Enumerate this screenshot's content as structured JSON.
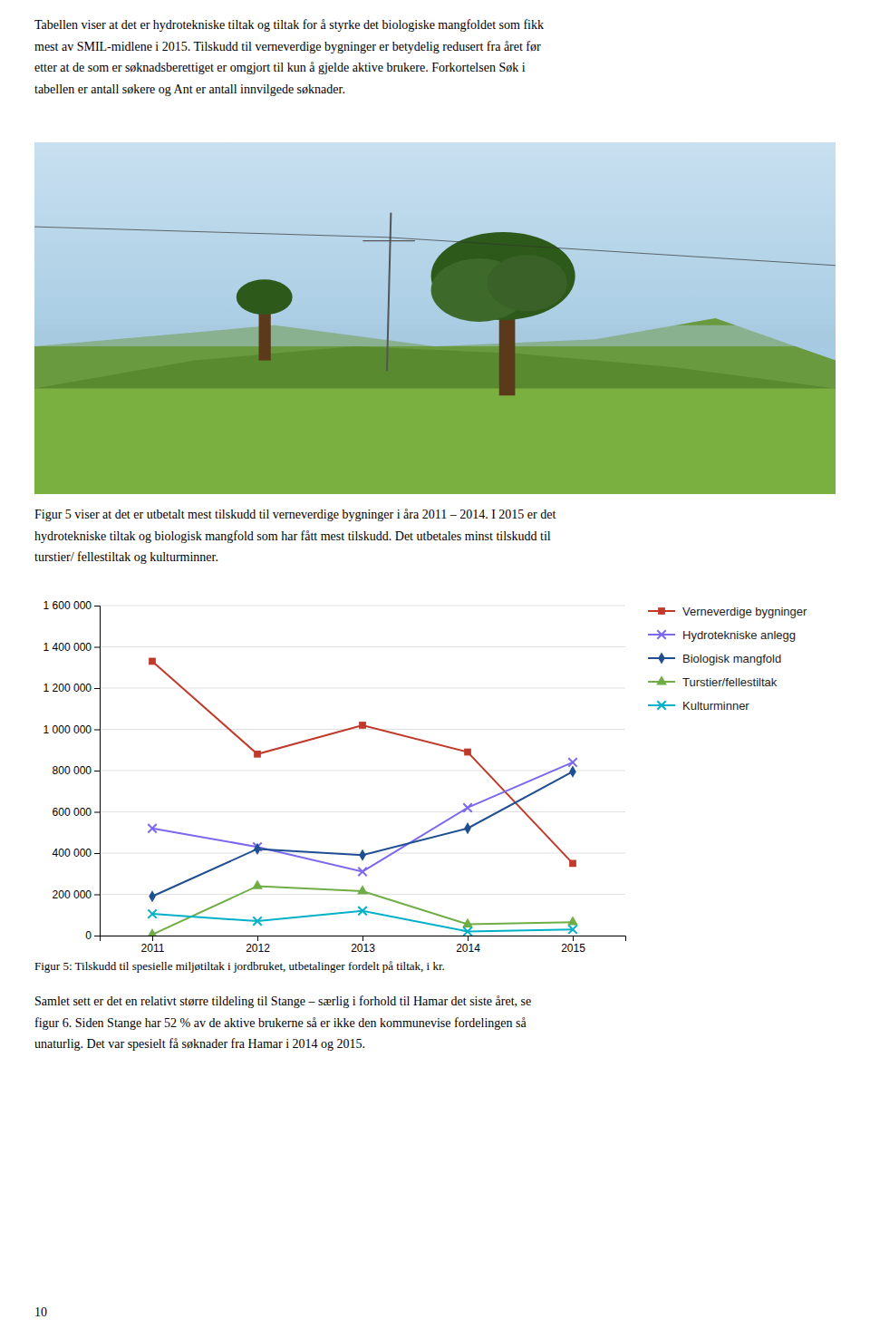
{
  "chart_data": {
    "type": "line",
    "x": [
      2011,
      2012,
      2013,
      2014,
      2015
    ],
    "xlim": [
      2010.5,
      2015.5
    ],
    "xticks": [
      2011,
      2012,
      2013,
      2014,
      2015
    ],
    "ylim": [
      0,
      1600000
    ],
    "yticks": [
      0,
      {
        "value": 200000,
        "label": "200 000"
      },
      {
        "value": 400000,
        "label": "400 000"
      },
      {
        "value": 600000,
        "label": "600 000"
      },
      {
        "value": 800000,
        "label": "800 000"
      },
      {
        "value": 1000000,
        "label": "1 000 000"
      },
      {
        "value": 1200000,
        "label": "1 200 000"
      },
      {
        "value": 1400000,
        "label": "1 400 000"
      },
      {
        "value": 1600000,
        "label": "1 600 000"
      }
    ],
    "grid": true,
    "legend": "right",
    "series": [
      {
        "name": "Verneverdige bygninger",
        "color": "#C0392B",
        "marker": "square",
        "values": [
          1330000,
          880000,
          1020000,
          890000,
          350000
        ]
      },
      {
        "name": "Hydrotekniske anlegg",
        "color": "#7B68EE",
        "marker": "x",
        "values": [
          520000,
          430000,
          310000,
          620000,
          840000
        ]
      },
      {
        "name": "Biologisk mangfold",
        "color": "#1F4E91",
        "marker": "diamond",
        "values": [
          190000,
          420000,
          390000,
          520000,
          795000
        ]
      },
      {
        "name": "Turstier/fellestiltak",
        "color": "#70AD47",
        "marker": "triangle",
        "values": [
          5000,
          240000,
          215000,
          55000,
          65000
        ]
      },
      {
        "name": "Kulturminner",
        "color": "#00B0C8",
        "marker": "x",
        "values": [
          105000,
          70000,
          120000,
          20000,
          30000
        ]
      }
    ]
  },
  "page": {
    "paragraphs": [
      [
        "Tabellen viser at det er hydrotekniske tiltak og tiltak for å styrke det biologiske mangfoldet som fikk",
        "mest av SMIL-midlene i 2015. Tilskudd til verneverdige bygninger er betydelig redusert fra året før",
        "etter at de som er søknadsberettiget er omgjort til kun å gjelde aktive brukere. Forkortelsen Søk i",
        "tabellen er antall søkere og Ant er antall innvilgede søknader."
      ],
      [
        "Figur 5 viser at det er utbetalt mest tilskudd til verneverdige bygninger i åra 2011 – 2014. I 2015 er det",
        "hydrotekniske tiltak og biologisk mangfold som har fått mest tilskudd. Det utbetales minst tilskudd til",
        "turstier/ fellestiltak og kulturminner."
      ],
      [
        "Samlet sett er det en relativt større tildeling til Stange – særlig i forhold til Hamar det siste året, se",
        "figur 6. Siden Stange har 52 % av de aktive brukerne så er ikke den kommunevise fordelingen så",
        "unaturlig. Det var spesielt få søknader fra Hamar i 2014 og 2015."
      ]
    ],
    "caption": "Figur 5: Tilskudd til spesielle miljøtiltak i jordbruket, utbetalinger fordelt på tiltak, i kr.",
    "page_number": "10"
  }
}
